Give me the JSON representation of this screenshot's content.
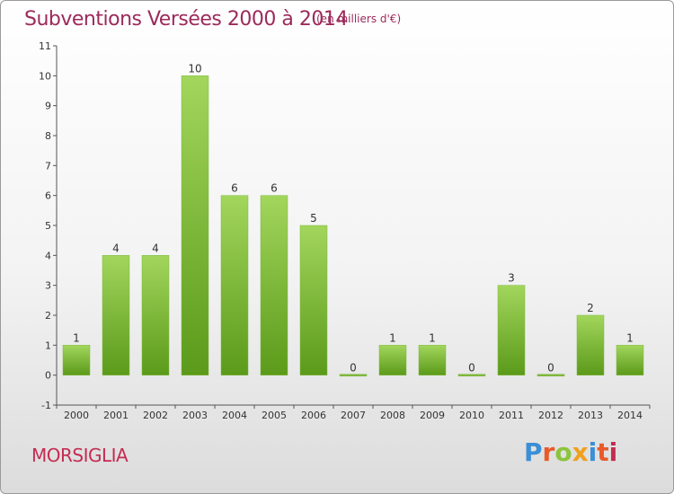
{
  "header": {
    "title": "Subventions Versées 2000 à 2014",
    "unit": "(en milliers d'€)"
  },
  "footer": {
    "commune": "MORSIGLIA",
    "logo": "Proxiti"
  },
  "colors": {
    "title": "#9c2a5a",
    "commune": "#c42c52",
    "bar_light": "#9fd45a",
    "bar_dark": "#5e9a1c"
  },
  "chart_data": {
    "type": "bar",
    "title": "Subventions Versées 2000 à 2014",
    "subtitle": "(en milliers d'€)",
    "xlabel": "",
    "ylabel": "",
    "categories": [
      "2000",
      "2001",
      "2002",
      "2003",
      "2004",
      "2005",
      "2006",
      "2007",
      "2008",
      "2009",
      "2010",
      "2011",
      "2012",
      "2013",
      "2014"
    ],
    "values": [
      1,
      4,
      4,
      10,
      6,
      6,
      5,
      0,
      1,
      1,
      0,
      3,
      0,
      2,
      1
    ],
    "ylim": [
      -1,
      11
    ],
    "yticks": [
      "-1",
      "0",
      "1",
      "2",
      "3",
      "4",
      "5",
      "6",
      "7",
      "8",
      "9",
      "10",
      "11"
    ],
    "grid": false,
    "legend": "none"
  }
}
